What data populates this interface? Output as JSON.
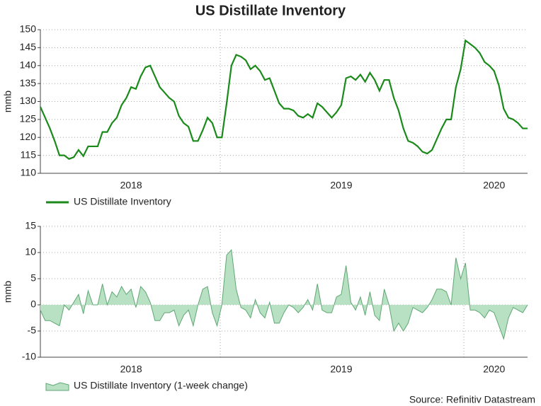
{
  "title": "US Distillate Inventory",
  "source": "Source: Refinitiv Datastream",
  "chart_data": [
    {
      "type": "line",
      "ylabel": "mmb",
      "legend": "US Distillate Inventory",
      "color": "#1a8a1a",
      "grid": true,
      "ylim": [
        110,
        150
      ],
      "yticks": [
        110,
        115,
        120,
        125,
        130,
        135,
        140,
        145,
        150
      ],
      "categories": [
        null,
        null,
        null,
        null,
        null,
        null,
        null,
        null,
        null,
        null,
        null,
        null,
        null,
        null,
        null,
        null,
        null,
        null,
        null,
        "2018",
        null,
        null,
        null,
        null,
        null,
        null,
        null,
        null,
        null,
        null,
        null,
        null,
        null,
        null,
        null,
        null,
        null,
        null,
        null,
        null,
        null,
        null,
        null,
        null,
        null,
        null,
        null,
        null,
        null,
        null,
        null,
        null,
        null,
        null,
        null,
        null,
        null,
        null,
        null,
        null,
        null,
        null,
        null,
        "2019",
        null,
        null,
        null,
        null,
        null,
        null,
        null,
        null,
        null,
        null,
        null,
        null,
        null,
        null,
        null,
        null,
        null,
        null,
        null,
        null,
        null,
        null,
        null,
        null,
        null,
        null,
        null,
        null,
        null,
        null,
        null,
        "2020",
        null,
        null,
        null,
        null,
        null,
        null,
        null
      ],
      "values": [
        128.5,
        125.5,
        122.5,
        119,
        115,
        115,
        114,
        114.5,
        116.5,
        114.8,
        117.5,
        117.5,
        117.5,
        121.5,
        121.5,
        124,
        125.5,
        129,
        131,
        134,
        133.5,
        137,
        139.5,
        140,
        137,
        134,
        132.5,
        131,
        130,
        126,
        124,
        123,
        119,
        119,
        122,
        125.5,
        124,
        120,
        120,
        129.5,
        140,
        143,
        142.5,
        141.5,
        139,
        140,
        138.5,
        136,
        136.5,
        133,
        129.5,
        128,
        128,
        127.5,
        126,
        125.5,
        126.5,
        125.5,
        129.5,
        128.5,
        127,
        125.5,
        127,
        129,
        136.5,
        137,
        136,
        137.5,
        135.5,
        138,
        136,
        133,
        136,
        136,
        131,
        127.5,
        122.5,
        119,
        118.5,
        117.5,
        116,
        115.5,
        116.5,
        119.5,
        122.5,
        125,
        125,
        134,
        139,
        147,
        146,
        145,
        143.5,
        141,
        140,
        138.5,
        134.5,
        128,
        125.5,
        125,
        124,
        122.5,
        122.5
      ]
    },
    {
      "type": "area",
      "ylabel": "mmb",
      "legend": "US Distillate Inventory (1-week change)",
      "color": "#b8e0c2",
      "line_color": "#5fa774",
      "grid": true,
      "ylim": [
        -10,
        15
      ],
      "yticks": [
        -10,
        -5,
        0,
        5,
        10,
        15
      ],
      "categories": [
        null,
        null,
        null,
        null,
        null,
        null,
        null,
        null,
        null,
        null,
        null,
        null,
        null,
        null,
        null,
        null,
        null,
        null,
        null,
        "2018",
        null,
        null,
        null,
        null,
        null,
        null,
        null,
        null,
        null,
        null,
        null,
        null,
        null,
        null,
        null,
        null,
        null,
        null,
        null,
        null,
        null,
        null,
        null,
        null,
        null,
        null,
        null,
        null,
        null,
        null,
        null,
        null,
        null,
        null,
        null,
        null,
        null,
        null,
        null,
        null,
        null,
        null,
        null,
        "2019",
        null,
        null,
        null,
        null,
        null,
        null,
        null,
        null,
        null,
        null,
        null,
        null,
        null,
        null,
        null,
        null,
        null,
        null,
        null,
        null,
        null,
        null,
        null,
        null,
        null,
        null,
        null,
        null,
        null,
        null,
        null,
        "2020",
        null,
        null,
        null,
        null,
        null,
        null,
        null
      ],
      "values": [
        -1,
        -3,
        -3,
        -3.5,
        -4,
        0,
        -1,
        0.5,
        2,
        -1.7,
        2.7,
        0,
        0,
        4,
        0,
        2.5,
        1.5,
        3.5,
        2,
        3,
        -0.5,
        3.5,
        2.5,
        0.5,
        -3,
        -3,
        -1.5,
        -1.5,
        -1,
        -4,
        -2,
        -1,
        -4,
        0,
        3,
        3.5,
        -1.5,
        -4,
        0,
        9.5,
        10.5,
        3,
        -0.5,
        -1,
        -2.5,
        1,
        -1.5,
        -2.5,
        0.5,
        -3.5,
        -3.5,
        -1.5,
        0,
        -0.5,
        -1.5,
        -0.5,
        1,
        -1,
        4,
        -1,
        -1.5,
        -1.5,
        1.5,
        2,
        7.5,
        0.5,
        -1,
        1.5,
        -2,
        2.5,
        -2,
        -3,
        3,
        0,
        -5,
        -3.5,
        -5,
        -3.5,
        -0.5,
        -1,
        -1.5,
        -0.5,
        1,
        3,
        3,
        2.5,
        0,
        9,
        5,
        8,
        -1,
        -1,
        -1.5,
        -2.5,
        -1,
        -1.5,
        -4,
        -6.5,
        -2.5,
        -0.5,
        -1,
        -1.5,
        0
      ]
    }
  ]
}
